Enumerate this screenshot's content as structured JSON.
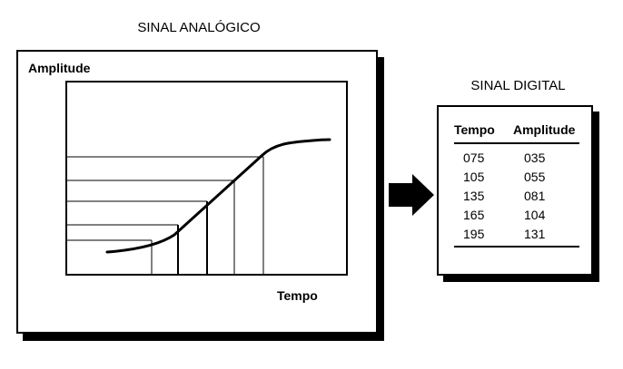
{
  "titles": {
    "analog": "SINAL ANALÓGICO",
    "digital": "SINAL DIGITAL"
  },
  "analog_chart": {
    "y_label": "Amplitude",
    "x_label": "Tempo"
  },
  "digital_table": {
    "headers": [
      "Tempo",
      "Amplitude"
    ],
    "rows": [
      [
        "075",
        "035"
      ],
      [
        "105",
        "055"
      ],
      [
        "135",
        "081"
      ],
      [
        "165",
        "104"
      ],
      [
        "195",
        "131"
      ]
    ]
  },
  "arrow": {
    "color": "#000000",
    "icon": "arrow-right-icon"
  }
}
